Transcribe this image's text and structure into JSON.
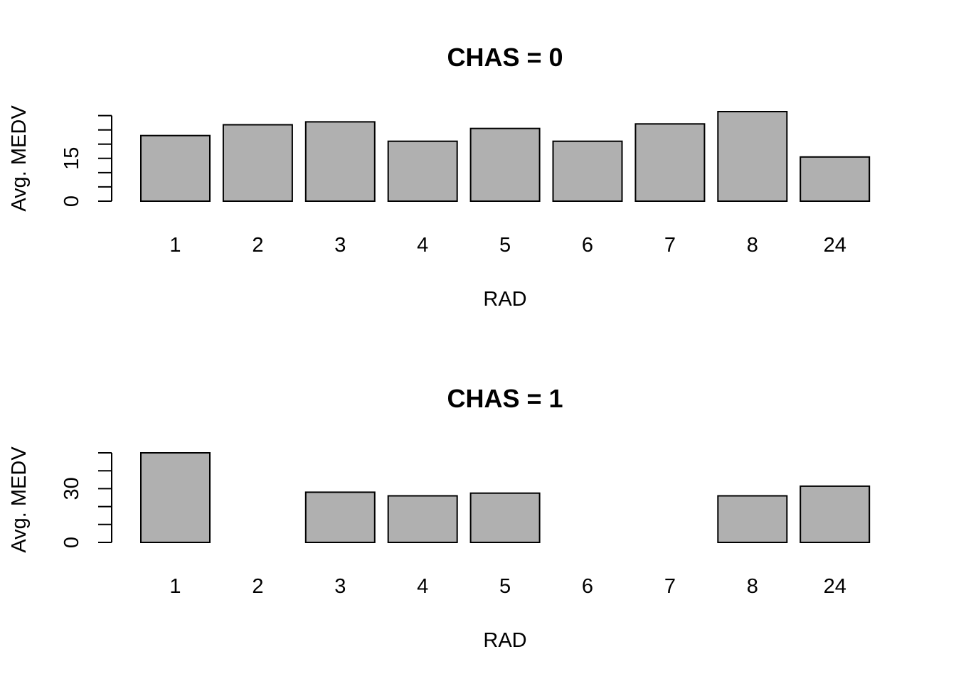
{
  "chart_data": [
    {
      "type": "bar",
      "title": "CHAS = 0",
      "xlabel": "RAD",
      "ylabel": "Avg. MEDV",
      "categories": [
        "1",
        "2",
        "3",
        "4",
        "5",
        "6",
        "7",
        "8",
        "24"
      ],
      "values": [
        23.0,
        26.8,
        27.8,
        21.0,
        25.5,
        21.0,
        27.1,
        31.4,
        15.5
      ],
      "ylim": [
        0,
        31.4
      ],
      "yticks": [
        0,
        5,
        10,
        15,
        20,
        25,
        30
      ],
      "ytick_labels": [
        "0",
        "",
        "",
        "15",
        "",
        "",
        ""
      ],
      "grid": false
    },
    {
      "type": "bar",
      "title": "CHAS = 1",
      "xlabel": "RAD",
      "ylabel": "Avg. MEDV",
      "categories": [
        "1",
        "2",
        "3",
        "4",
        "5",
        "6",
        "7",
        "8",
        "24"
      ],
      "values": [
        50.0,
        null,
        28.0,
        26.0,
        27.5,
        null,
        null,
        26.0,
        31.4
      ],
      "ylim": [
        0,
        50
      ],
      "yticks": [
        0,
        10,
        20,
        30,
        40,
        50
      ],
      "ytick_labels": [
        "0",
        "",
        "",
        "30",
        "",
        ""
      ],
      "grid": false
    }
  ],
  "colors": {
    "bar_fill": "#b0b0b0",
    "bar_stroke": "#000000"
  }
}
